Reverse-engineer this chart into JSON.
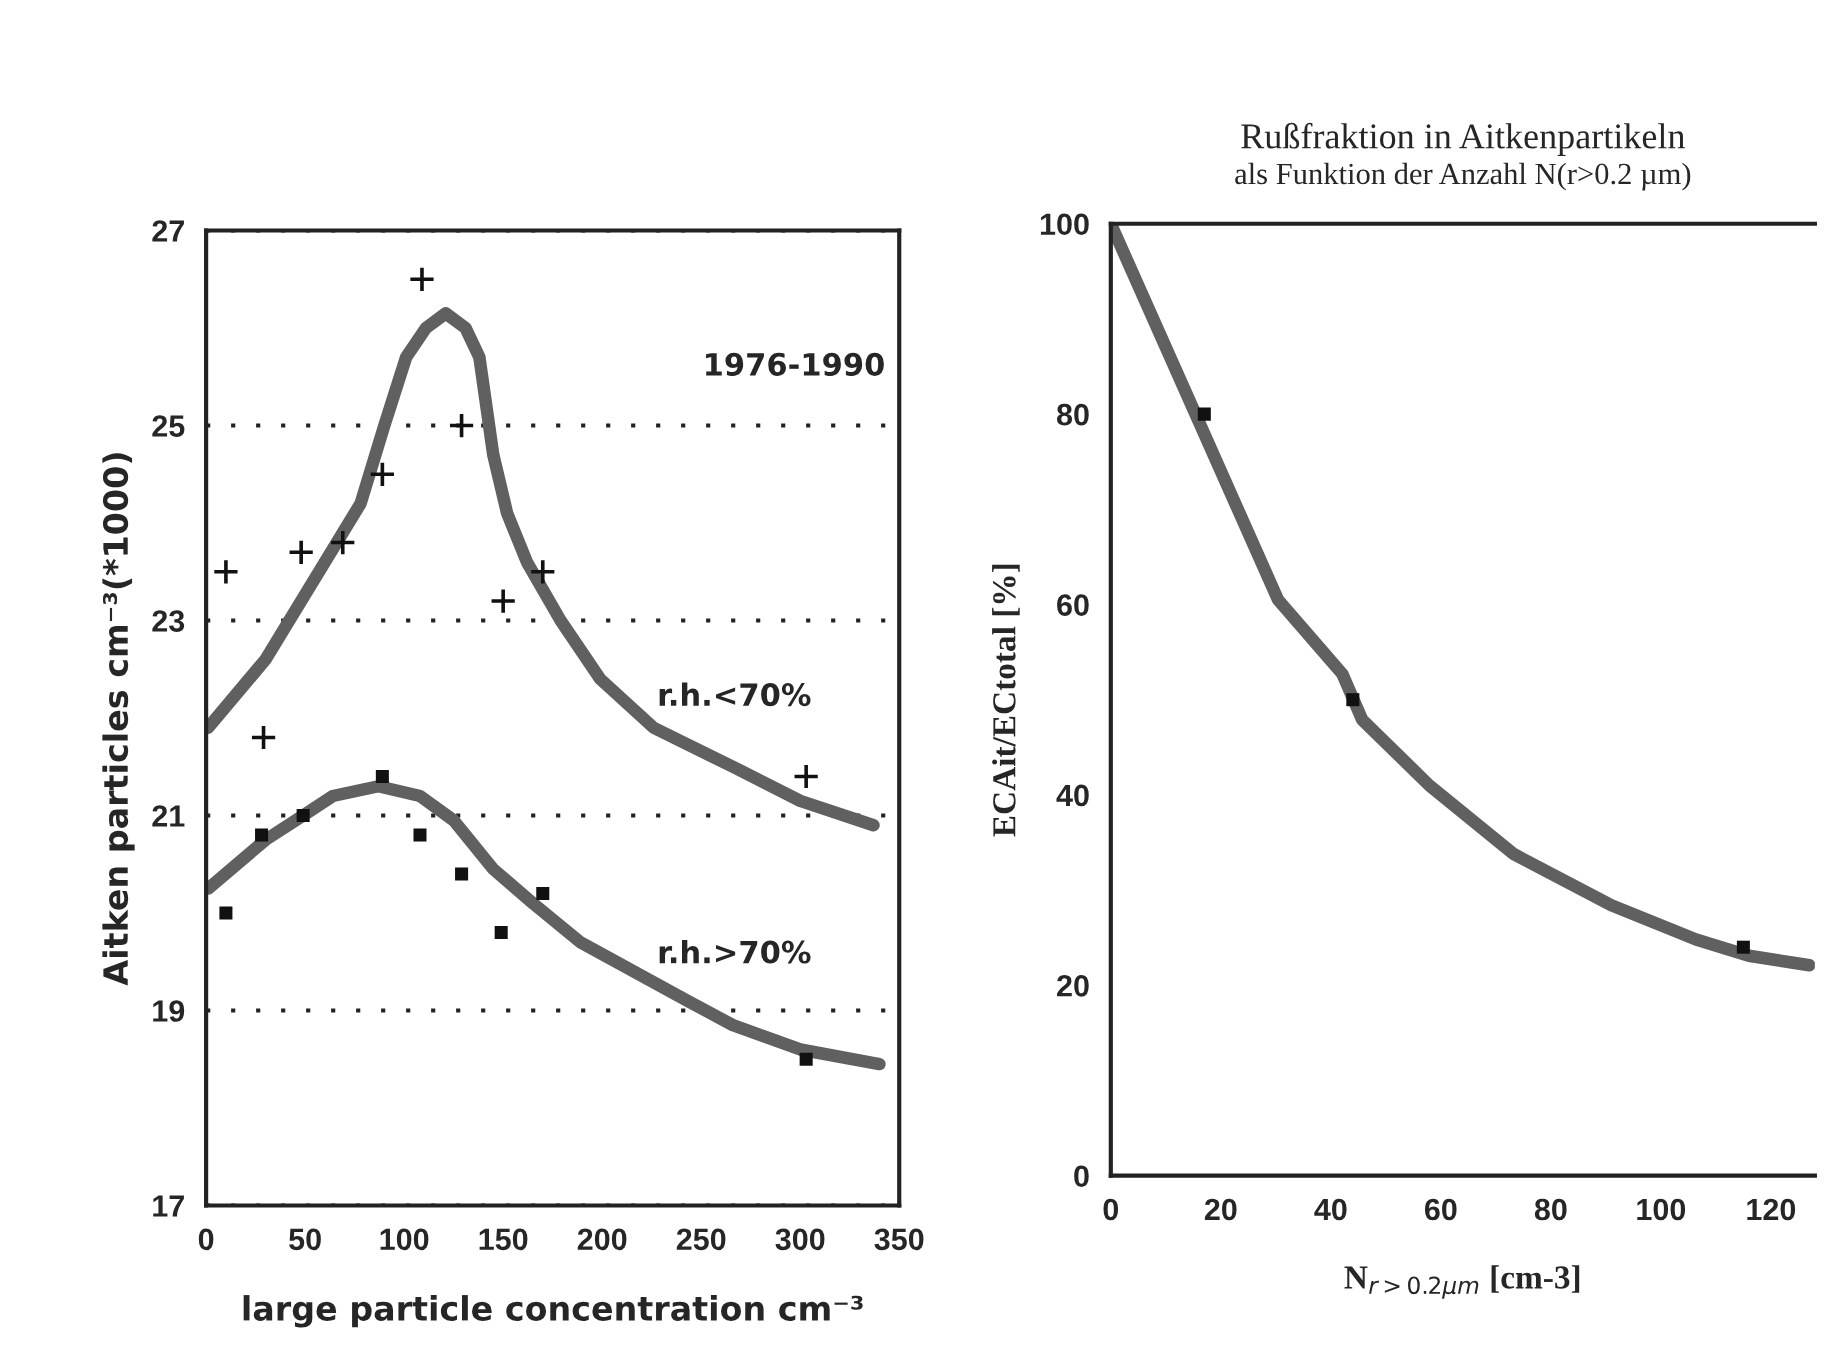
{
  "chart_data": [
    {
      "type": "scatter",
      "xlabel": "large particle concentration cm⁻³",
      "ylabel": "Aitken particles cm⁻³(*1000)",
      "annotations": [
        "1976-1990"
      ],
      "xlim": [
        0,
        350
      ],
      "ylim": [
        17,
        27
      ],
      "xticks": [
        0,
        50,
        100,
        150,
        200,
        250,
        300,
        350
      ],
      "yticks": [
        17,
        19,
        21,
        23,
        25,
        27
      ],
      "grid": "y",
      "legend": false,
      "series": [
        {
          "marker": "cross",
          "color": "#111111",
          "x": [
            10,
            29,
            48,
            69,
            89,
            109,
            129,
            150,
            170,
            303
          ],
          "values": [
            23.5,
            21.8,
            23.7,
            23.8,
            24.5,
            26.5,
            25,
            23.2,
            23.5,
            21.4
          ]
        },
        {
          "type": "line",
          "name": "r.h.<70%",
          "color": "#606060",
          "x": [
            1,
            30,
            54,
            78,
            90,
            101,
            111,
            121,
            131,
            138,
            145,
            152,
            162,
            179,
            199,
            226,
            266,
            300,
            337
          ],
          "values": [
            21.9,
            22.6,
            23.4,
            24.2,
            25.0,
            25.7,
            26.0,
            26.15,
            26.0,
            25.7,
            24.7,
            24.1,
            23.6,
            23.0,
            22.4,
            21.9,
            21.5,
            21.15,
            20.9
          ]
        },
        {
          "marker": "square",
          "color": "#111111",
          "x": [
            10,
            28,
            49,
            89,
            108,
            129,
            149,
            170,
            303
          ],
          "values": [
            20.0,
            20.8,
            21.0,
            21.4,
            20.8,
            20.4,
            19.8,
            20.2,
            18.5
          ]
        },
        {
          "type": "line",
          "name": "r.h.>70%",
          "color": "#606060",
          "x": [
            1,
            30,
            49,
            64,
            87,
            108,
            125,
            145,
            165,
            189,
            216,
            243,
            266,
            300,
            340
          ],
          "values": [
            20.25,
            20.75,
            21.0,
            21.2,
            21.3,
            21.2,
            20.95,
            20.45,
            20.1,
            19.7,
            19.4,
            19.1,
            18.85,
            18.6,
            18.45
          ]
        }
      ]
    },
    {
      "type": "scatter",
      "title": "Rußfraktion in Aitkenpartikeln",
      "subtitle": "als Funktion der Anzahl N(r>0.2 µm)",
      "xlabel": "N$_{r>0.2µm}$ [cm-3]",
      "ylabel": "ECAit/ECtotal [%]",
      "xlim": [
        0,
        128
      ],
      "ylim": [
        0,
        100
      ],
      "xticks": [
        0,
        20,
        40,
        60,
        80,
        100,
        120
      ],
      "yticks": [
        0,
        20,
        40,
        60,
        80,
        100
      ],
      "legend": false,
      "series": [
        {
          "marker": "square",
          "color": "#111111",
          "x": [
            17,
            44,
            115
          ],
          "values": [
            80,
            50,
            24
          ]
        },
        {
          "type": "line",
          "color": "#606060",
          "x": [
            0,
            15.4,
            30.4,
            42.1,
            45.7,
            57.9,
            73.2,
            91,
            106.4,
            116,
            127
          ],
          "values": [
            100,
            80,
            60.5,
            52.7,
            47.9,
            41,
            33.8,
            28.4,
            24.8,
            23.1,
            22.1
          ]
        }
      ]
    }
  ]
}
